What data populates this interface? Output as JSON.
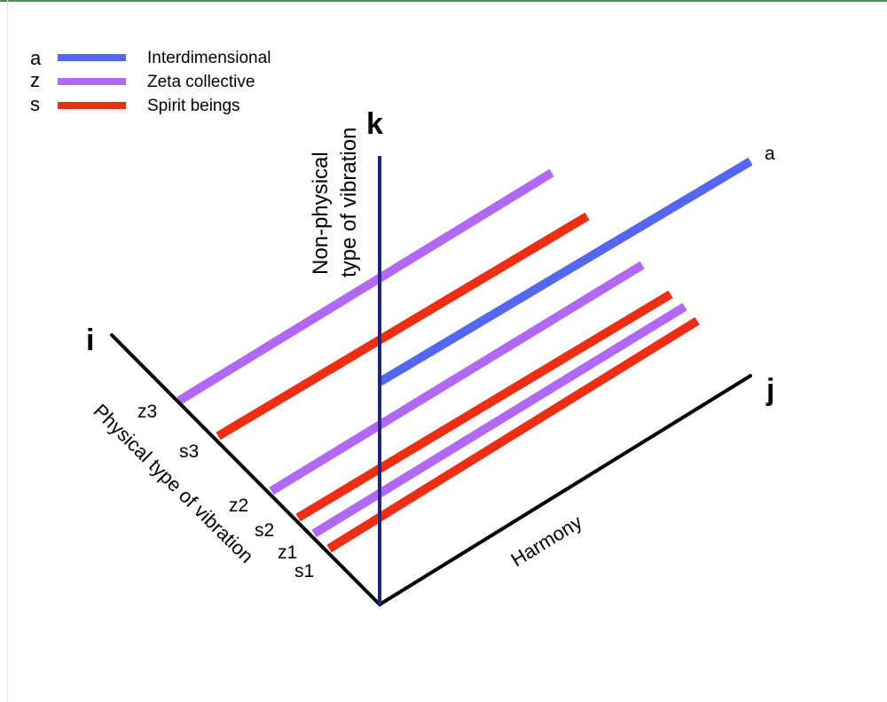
{
  "legend": [
    {
      "key": "a",
      "label": "Interdimensional",
      "color": "#5468ef"
    },
    {
      "key": "z",
      "label": "Zeta collective",
      "color": "#b168f4"
    },
    {
      "key": "s",
      "label": "Spirit beings",
      "color": "#ee2e12"
    }
  ],
  "axes": {
    "i": {
      "letter": "i",
      "title": "Physical type of vibration"
    },
    "j": {
      "letter": "j",
      "title": "Harmony"
    },
    "k": {
      "letter": "k",
      "title_line1": "Non-physical",
      "title_line2": "type of vibration"
    }
  },
  "origin_labels": [
    "z3",
    "s3",
    "z2",
    "s2",
    "z1",
    "s1"
  ],
  "end_label": "a",
  "colors": {
    "axis_black": "#000000",
    "axis_k": "#1f257a",
    "frame": "#4d8a58"
  }
}
